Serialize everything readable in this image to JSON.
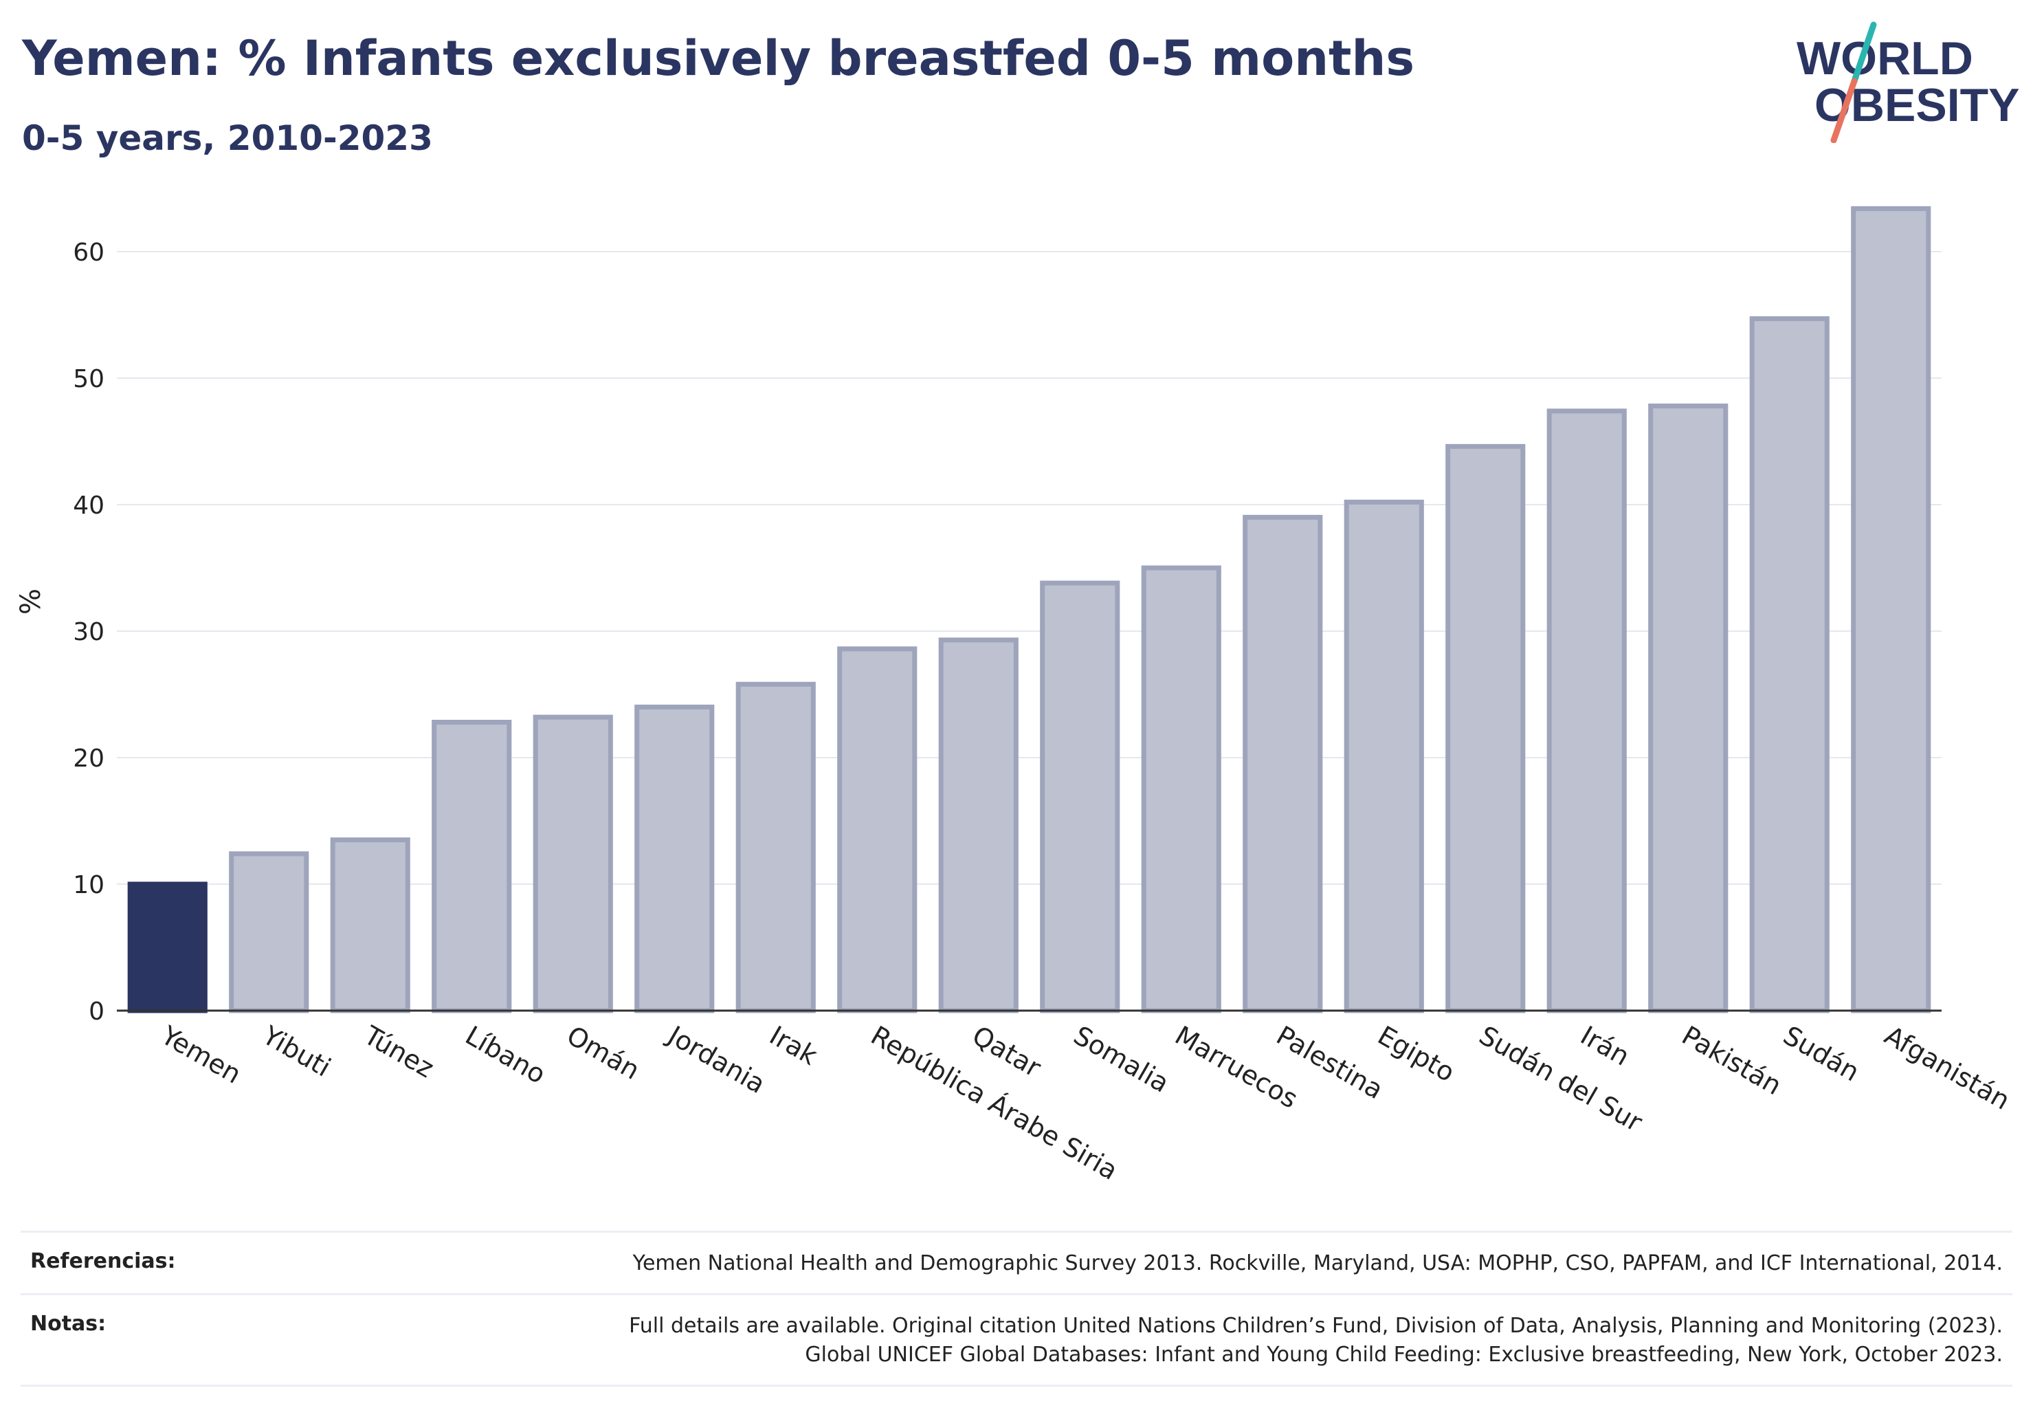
{
  "header": {
    "title": "Yemen: % Infants exclusively breastfed 0-5 months",
    "subtitle": "0-5 years, 2010-2023"
  },
  "logo": {
    "line1": "WORLD",
    "line2": "OBESITY"
  },
  "colors": {
    "highlight": "#2b3561",
    "bar_fill": "#bdc1d0",
    "bar_stroke": "#9ea4bb",
    "grid": "#e6e8ef"
  },
  "chart_data": {
    "type": "bar",
    "ylabel": "%",
    "ylim": [
      0,
      65
    ],
    "yticks": [
      0,
      10,
      20,
      30,
      40,
      50,
      60
    ],
    "grid": true,
    "highlight_category": "Yemen",
    "categories": [
      "Yemen",
      "Yibuti",
      "Túnez",
      "Líbano",
      "Omán",
      "Jordania",
      "Irak",
      "República Árabe Siria",
      "Qatar",
      "Somalia",
      "Marruecos",
      "Palestina",
      "Egipto",
      "Sudán del Sur",
      "Irán",
      "Pakistán",
      "Sudán",
      "Afganistán"
    ],
    "values": [
      10.0,
      12.4,
      13.5,
      22.8,
      23.2,
      24.0,
      25.8,
      28.6,
      29.3,
      33.8,
      35.0,
      39.0,
      40.2,
      44.6,
      47.4,
      47.8,
      54.7,
      63.4
    ]
  },
  "footer": {
    "references_label": "Referencias:",
    "references_text": "Yemen National Health and Demographic Survey 2013. Rockville, Maryland, USA: MOPHP, CSO, PAPFAM, and ICF International, 2014.",
    "notes_label": "Notas:",
    "notes_line1": "Full details are available. Original citation United Nations Children’s Fund, Division of Data, Analysis, Planning and Monitoring (2023).",
    "notes_line2": "Global UNICEF Global Databases: Infant and Young Child Feeding: Exclusive breastfeeding, New York, October 2023."
  }
}
